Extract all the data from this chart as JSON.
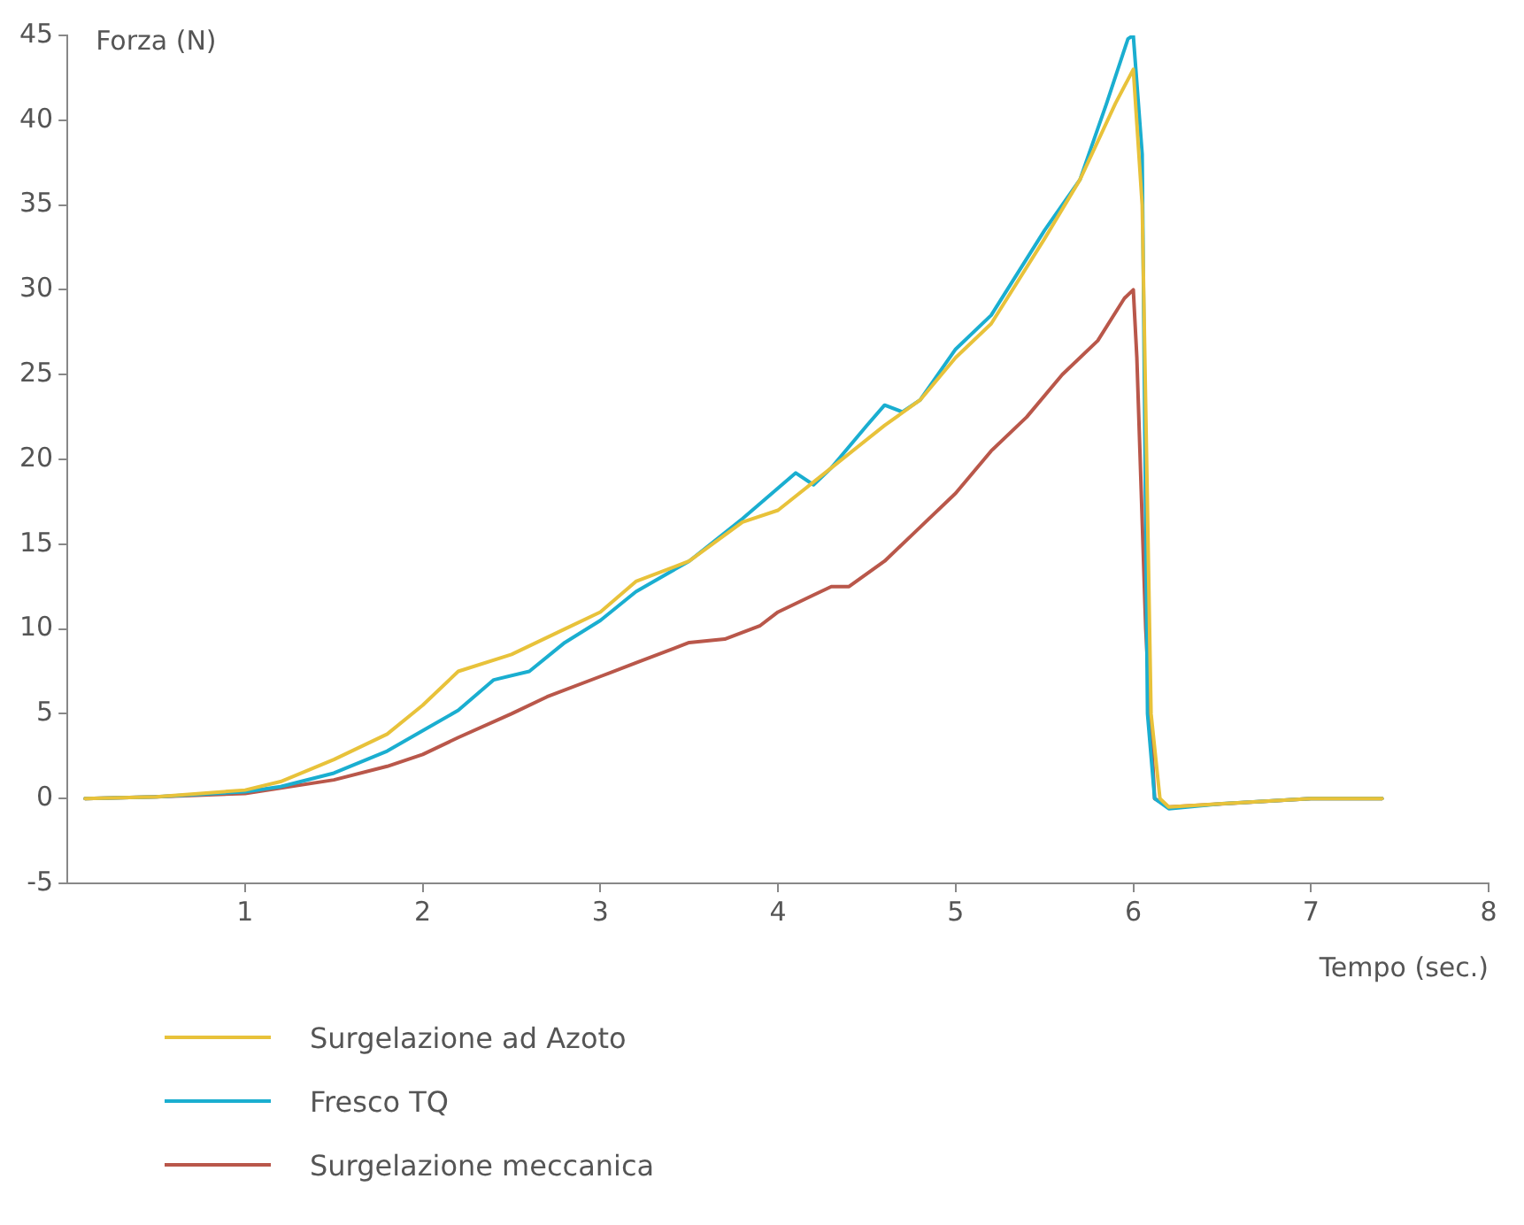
{
  "chart_data": {
    "type": "line",
    "ylabel": "Forza (N)",
    "xlabel": "Tempo (sec.)",
    "xlim": [
      0,
      8
    ],
    "xticks": [
      1,
      2,
      3,
      4,
      5,
      6,
      7,
      8
    ],
    "ylim": [
      -5,
      45
    ],
    "yticks": [
      -5,
      0,
      5,
      10,
      15,
      20,
      25,
      30,
      35,
      40,
      45
    ],
    "grid": false,
    "legend": "bottom",
    "marker": "none",
    "line_style": "solid",
    "series": [
      {
        "name": "Surgelazione ad Azoto",
        "color": "#e8c23a",
        "x": [
          0.1,
          0.5,
          1,
          1.2,
          1.5,
          1.8,
          2,
          2.2,
          2.5,
          2.8,
          3,
          3.2,
          3.5,
          3.8,
          4,
          4.3,
          4.6,
          4.8,
          5,
          5.2,
          5.5,
          5.7,
          5.9,
          6.0,
          6.05,
          6.1,
          6.15,
          6.2,
          6.5,
          7,
          7.4
        ],
        "values": [
          0,
          0.1,
          0.5,
          1,
          2.3,
          3.8,
          5.5,
          7.5,
          8.5,
          10,
          11,
          12.8,
          14,
          16.3,
          17,
          19.5,
          22,
          23.5,
          26,
          28,
          33,
          36.5,
          41,
          43,
          35,
          5,
          0,
          -0.5,
          -0.3,
          0,
          0
        ]
      },
      {
        "name": "Fresco TQ",
        "color": "#1aaed0",
        "x": [
          0.1,
          0.5,
          1,
          1.2,
          1.5,
          1.8,
          2,
          2.2,
          2.4,
          2.6,
          2.8,
          3,
          3.2,
          3.5,
          3.8,
          4.1,
          4.2,
          4.3,
          4.5,
          4.6,
          4.7,
          4.8,
          5,
          5.2,
          5.5,
          5.7,
          5.85,
          5.97,
          6.0,
          6.05,
          6.08,
          6.12,
          6.2,
          6.5,
          7,
          7.4
        ],
        "values": [
          0,
          0.1,
          0.4,
          0.7,
          1.5,
          2.8,
          4,
          5.2,
          7,
          7.5,
          9.2,
          10.5,
          12.2,
          14,
          16.5,
          19.2,
          18.5,
          19.5,
          22,
          23.2,
          22.8,
          23.5,
          26.5,
          28.5,
          33.5,
          36.5,
          41,
          44.8,
          45,
          38,
          5,
          0,
          -0.6,
          -0.3,
          0,
          0
        ]
      },
      {
        "name": "Surgelazione meccanica",
        "color": "#b9574a",
        "x": [
          0.1,
          0.5,
          1,
          1.5,
          1.8,
          2,
          2.2,
          2.5,
          2.7,
          3,
          3.2,
          3.5,
          3.7,
          3.9,
          4,
          4.2,
          4.3,
          4.4,
          4.6,
          4.8,
          5,
          5.2,
          5.4,
          5.6,
          5.8,
          5.95,
          6.0,
          6.02,
          6.07,
          6.12,
          6.2,
          7,
          7.4
        ],
        "values": [
          0,
          0.1,
          0.3,
          1.1,
          1.9,
          2.6,
          3.6,
          5,
          6,
          7.2,
          8,
          9.2,
          9.4,
          10.2,
          11,
          12,
          12.5,
          12.5,
          14,
          16,
          18,
          20.5,
          22.5,
          25,
          27,
          29.5,
          30,
          26,
          10,
          0,
          -0.5,
          0,
          0
        ]
      }
    ]
  }
}
